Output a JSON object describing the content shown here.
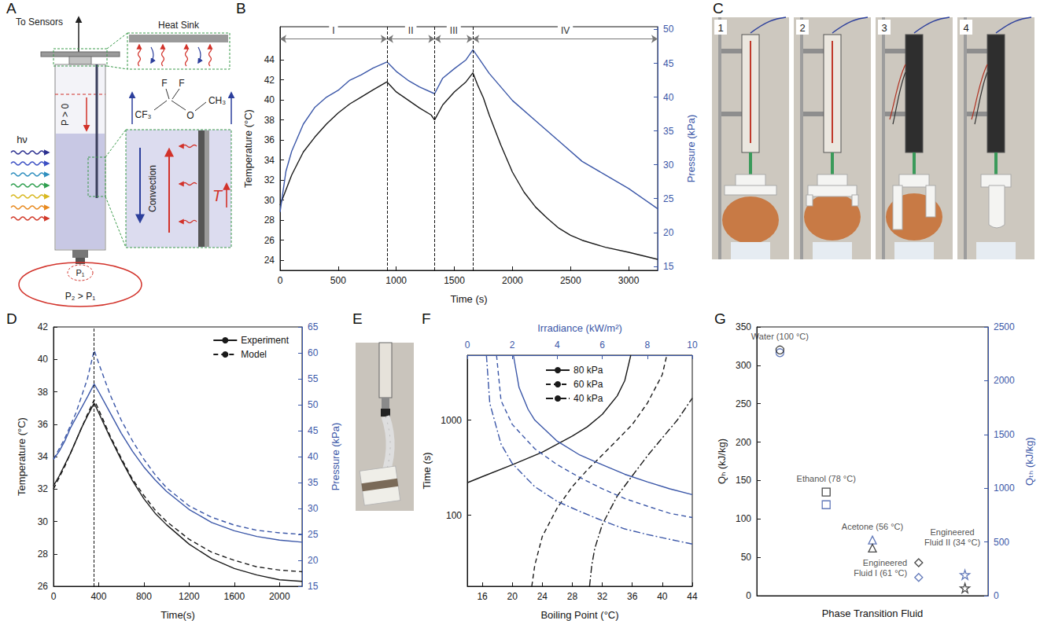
{
  "panel_labels": [
    "A",
    "B",
    "C",
    "D",
    "E",
    "F",
    "G"
  ],
  "diagram": {
    "to_sensors": "To Sensors",
    "heat_sink": "Heat Sink",
    "pressure": "P > 0",
    "light": "hν",
    "inner_pressure": "P₁",
    "outer_pressure": "P₂ > P₁",
    "convection": "Convection",
    "temperature": "T",
    "molecule": [
      "CF₃",
      "F",
      "F",
      "O",
      "CH₃"
    ]
  },
  "photos": [
    "1",
    "2",
    "3",
    "4"
  ],
  "chart_data": [
    {
      "type": "line",
      "xlabel": "Time (s)",
      "ylabel": "Temperature (°C)",
      "y2label": "Pressure (kPa)",
      "grid": false,
      "xlim": [
        0,
        3250
      ],
      "xticks": [
        0,
        500,
        1000,
        1500,
        2000,
        2500,
        3000
      ],
      "ylim": [
        23,
        47.3
      ],
      "yticks": [
        24,
        26,
        28,
        30,
        32,
        34,
        36,
        38,
        40,
        42,
        44
      ],
      "y2lim": [
        14.4,
        50.4
      ],
      "y2ticks": [
        15,
        20,
        25,
        30,
        35,
        40,
        45,
        50
      ],
      "phases": [
        {
          "label": "I",
          "start": 0,
          "end": 920
        },
        {
          "label": "II",
          "start": 920,
          "end": 1330
        },
        {
          "label": "III",
          "start": 1330,
          "end": 1660
        },
        {
          "label": "IV",
          "start": 1660,
          "end": 3250
        }
      ],
      "series": [
        {
          "color": "#1a1a1a",
          "x": [
            0,
            100,
            200,
            300,
            400,
            500,
            600,
            700,
            800,
            920,
            1000,
            1100,
            1200,
            1300,
            1330,
            1400,
            1500,
            1600,
            1660,
            1700,
            1750,
            1800,
            1900,
            2000,
            2100,
            2200,
            2300,
            2400,
            2500,
            2600,
            2800,
            3000,
            3250
          ],
          "values": [
            29.5,
            32.5,
            34.8,
            36.3,
            37.6,
            38.7,
            39.6,
            40.3,
            41,
            41.8,
            40.8,
            40,
            39.2,
            38.5,
            38,
            39.5,
            40.8,
            41.8,
            42.7,
            41.5,
            40.2,
            38.5,
            35.5,
            32.8,
            30.8,
            29.3,
            28.2,
            27.2,
            26.5,
            26,
            25.3,
            24.8,
            24.1
          ]
        },
        {
          "color": "#3b57a8",
          "axis": "y2",
          "x": [
            0,
            50,
            100,
            200,
            300,
            400,
            500,
            600,
            700,
            800,
            920,
            1000,
            1100,
            1200,
            1330,
            1400,
            1500,
            1600,
            1660,
            1700,
            1800,
            1900,
            2000,
            2200,
            2400,
            2600,
            2800,
            3000,
            3250
          ],
          "values": [
            23,
            29,
            32,
            36,
            38.5,
            40,
            41,
            42.5,
            43.3,
            44.3,
            45.2,
            43.8,
            42.5,
            41.5,
            40.5,
            42.8,
            44.2,
            45.5,
            47,
            46,
            43.5,
            41.5,
            39.5,
            36.5,
            33.5,
            30.5,
            28.5,
            26.5,
            23.5
          ]
        }
      ]
    },
    {
      "type": "line",
      "xlabel": "Time(s)",
      "ylabel": "Temperature (°C)",
      "y2label": "Pressure (kPa)",
      "grid": false,
      "legend": "upper right",
      "xlim": [
        0,
        2200
      ],
      "xticks": [
        0,
        400,
        800,
        1200,
        1600,
        2000
      ],
      "ylim": [
        26,
        42
      ],
      "yticks": [
        26,
        28,
        30,
        32,
        34,
        36,
        38,
        40,
        42
      ],
      "y2lim": [
        15,
        65
      ],
      "y2ticks": [
        15,
        20,
        25,
        30,
        35,
        40,
        45,
        50,
        55,
        60,
        65
      ],
      "switch_time": 360,
      "series": [
        {
          "name": "Experiment",
          "color": "#1a1a1a",
          "line_style": "solid",
          "x": [
            0,
            50,
            100,
            150,
            200,
            250,
            300,
            360,
            400,
            500,
            600,
            700,
            800,
            900,
            1000,
            1200,
            1400,
            1600,
            1800,
            2000,
            2200
          ],
          "values": [
            32.2,
            32.8,
            33.5,
            34.2,
            35,
            35.8,
            36.5,
            37.3,
            36.7,
            35.2,
            33.8,
            32.5,
            31.4,
            30.5,
            29.8,
            28.6,
            27.7,
            27.1,
            26.7,
            26.4,
            26.3
          ]
        },
        {
          "name": "Model",
          "color": "#1a1a1a",
          "line_style": "dashed",
          "x": [
            0,
            100,
            200,
            300,
            360,
            400,
            500,
            600,
            700,
            800,
            900,
            1000,
            1200,
            1400,
            1600,
            1800,
            2000,
            2200
          ],
          "values": [
            32,
            33.4,
            35,
            36.6,
            37.5,
            36.9,
            35.3,
            33.9,
            32.6,
            31.6,
            30.7,
            30,
            28.9,
            28.1,
            27.6,
            27.2,
            27,
            26.9
          ]
        },
        {
          "name": "Experiment",
          "color": "#3b57a8",
          "line_style": "solid",
          "axis": "y2",
          "x": [
            0,
            50,
            100,
            150,
            200,
            250,
            300,
            360,
            400,
            500,
            600,
            700,
            800,
            900,
            1000,
            1200,
            1400,
            1600,
            1800,
            2000,
            2200
          ],
          "values": [
            39.5,
            41,
            43,
            45.5,
            47.5,
            49.5,
            51.5,
            54,
            52.5,
            48.5,
            44.5,
            41,
            38,
            35.5,
            33.3,
            29.8,
            27.3,
            25.7,
            24.6,
            23.9,
            23.5
          ]
        },
        {
          "name": "Model",
          "color": "#3b57a8",
          "line_style": "dashed",
          "axis": "y2",
          "x": [
            0,
            100,
            200,
            300,
            360,
            400,
            500,
            600,
            700,
            800,
            900,
            1000,
            1200,
            1400,
            1600,
            1800,
            2000,
            2200
          ],
          "values": [
            39.5,
            43.5,
            48.5,
            55,
            60.5,
            58,
            52,
            47,
            43,
            39.5,
            36.5,
            34,
            30.5,
            28.3,
            26.8,
            25.8,
            25.3,
            25
          ]
        }
      ]
    },
    {
      "type": "line",
      "log": "y",
      "xlabel": "Boiling Point (°C)",
      "x2label": "Irradiance (kW/m²)",
      "ylabel": "Time (s)",
      "grid": false,
      "legend": "upper left",
      "xlim": [
        14,
        44
      ],
      "xticks": [
        16,
        20,
        24,
        28,
        32,
        36,
        40,
        44
      ],
      "x2lim": [
        0,
        10
      ],
      "x2ticks": [
        0,
        2,
        4,
        6,
        8,
        10
      ],
      "ylim": [
        18,
        4800
      ],
      "yticks": [
        100,
        1000
      ],
      "series": [
        {
          "name": "80 kPa",
          "color": "#1a1a1a",
          "line_style": "solid",
          "x": [
            14,
            16,
            20,
            24,
            28,
            30,
            32,
            34,
            35,
            35.8
          ],
          "values": [
            220,
            255,
            340,
            460,
            680,
            850,
            1150,
            1800,
            2600,
            4800
          ]
        },
        {
          "name": "60 kPa",
          "color": "#1a1a1a",
          "line_style": "dashed",
          "x": [
            22.6,
            23,
            24,
            26,
            28,
            30,
            32,
            34,
            36,
            38,
            40,
            40.6
          ],
          "values": [
            18,
            30,
            60,
            120,
            200,
            300,
            430,
            620,
            900,
            1500,
            3000,
            4800
          ]
        },
        {
          "name": "40 kPa",
          "color": "#1a1a1a",
          "line_style": "dashdot",
          "x": [
            30.3,
            30.6,
            31,
            32,
            34,
            36,
            38,
            40,
            42,
            44
          ],
          "values": [
            18,
            30,
            45,
            80,
            160,
            260,
            420,
            650,
            1000,
            1700
          ]
        },
        {
          "name": "80 kPa",
          "color": "#3b57a8",
          "line_style": "solid",
          "axis": "x2",
          "x": [
            2.05,
            2.3,
            2.7,
            3,
            4,
            5,
            6,
            7,
            8,
            9,
            10
          ],
          "values": [
            4800,
            2200,
            1300,
            1000,
            600,
            430,
            340,
            270,
            225,
            190,
            165
          ]
        },
        {
          "name": "60 kPa",
          "color": "#3b57a8",
          "line_style": "dashed",
          "axis": "x2",
          "x": [
            1.3,
            1.5,
            2,
            3,
            4,
            5,
            6,
            7,
            8,
            9,
            10
          ],
          "values": [
            4800,
            1600,
            900,
            500,
            340,
            250,
            190,
            150,
            125,
            105,
            95
          ]
        },
        {
          "name": "40 kPa",
          "color": "#3b57a8",
          "line_style": "dashdot",
          "axis": "x2",
          "x": [
            0.85,
            1,
            1.5,
            2,
            3,
            4,
            5,
            6,
            7,
            8,
            9,
            10
          ],
          "values": [
            4800,
            1500,
            560,
            350,
            200,
            140,
            110,
            88,
            72,
            63,
            56,
            50
          ]
        }
      ]
    },
    {
      "type": "scatter",
      "xlabel": "Phase Transition Fluid",
      "ylabel": "Qₕ (kJ/kg)",
      "y2label": "Qₜₕ (kJ/kg)",
      "grid": false,
      "tick_labels": "y",
      "ylim": [
        0,
        350
      ],
      "yticks": [
        0,
        50,
        100,
        150,
        200,
        250,
        300,
        350
      ],
      "y2lim": [
        0,
        2500
      ],
      "y2ticks": [
        0,
        500,
        1000,
        1500,
        2000,
        2500
      ],
      "categories": [
        "Water (100 °C)",
        "Ethanol (78 °C)",
        "Acetone (56 °C)",
        "Engineered Fluid I (61 °C)",
        "Engineered Fluid II (34 °C)"
      ],
      "marker": [
        "circle",
        "square",
        "triangle",
        "diamond",
        "star"
      ],
      "series": [
        {
          "color": "#1a1a1a",
          "values": [
            320,
            135,
            62,
            43,
            10
          ]
        },
        {
          "color": "#3b57a8",
          "axis": "y2",
          "values": [
            2260,
            846,
            518,
            170,
            195
          ]
        }
      ]
    }
  ]
}
